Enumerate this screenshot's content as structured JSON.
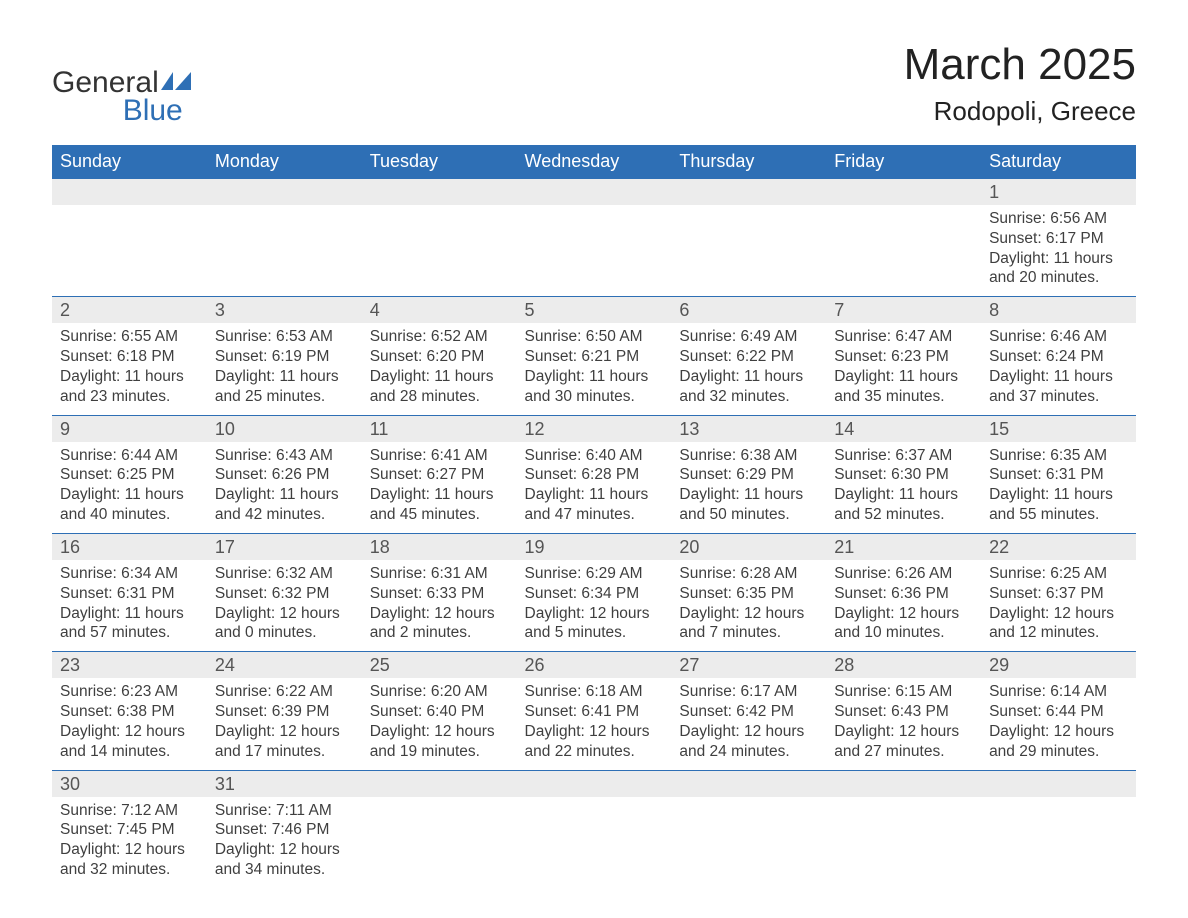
{
  "brand": {
    "word1": "General",
    "word2": "Blue",
    "color_text": "#333333",
    "color_blue": "#2e6fb5"
  },
  "title": "March 2025",
  "location": "Rodopoli, Greece",
  "colors": {
    "header_bg": "#2e6fb5",
    "header_text": "#ffffff",
    "daynum_bg": "#ececec",
    "body_text": "#3b3b3b",
    "page_bg": "#ffffff",
    "row_border": "#2e6fb5"
  },
  "day_labels": [
    "Sunday",
    "Monday",
    "Tuesday",
    "Wednesday",
    "Thursday",
    "Friday",
    "Saturday"
  ],
  "weeks": [
    [
      {
        "blank": true
      },
      {
        "blank": true
      },
      {
        "blank": true
      },
      {
        "blank": true
      },
      {
        "blank": true
      },
      {
        "blank": true
      },
      {
        "n": "1",
        "sunrise": "6:56 AM",
        "sunset": "6:17 PM",
        "dl": "11 hours and 20 minutes."
      }
    ],
    [
      {
        "n": "2",
        "sunrise": "6:55 AM",
        "sunset": "6:18 PM",
        "dl": "11 hours and 23 minutes."
      },
      {
        "n": "3",
        "sunrise": "6:53 AM",
        "sunset": "6:19 PM",
        "dl": "11 hours and 25 minutes."
      },
      {
        "n": "4",
        "sunrise": "6:52 AM",
        "sunset": "6:20 PM",
        "dl": "11 hours and 28 minutes."
      },
      {
        "n": "5",
        "sunrise": "6:50 AM",
        "sunset": "6:21 PM",
        "dl": "11 hours and 30 minutes."
      },
      {
        "n": "6",
        "sunrise": "6:49 AM",
        "sunset": "6:22 PM",
        "dl": "11 hours and 32 minutes."
      },
      {
        "n": "7",
        "sunrise": "6:47 AM",
        "sunset": "6:23 PM",
        "dl": "11 hours and 35 minutes."
      },
      {
        "n": "8",
        "sunrise": "6:46 AM",
        "sunset": "6:24 PM",
        "dl": "11 hours and 37 minutes."
      }
    ],
    [
      {
        "n": "9",
        "sunrise": "6:44 AM",
        "sunset": "6:25 PM",
        "dl": "11 hours and 40 minutes."
      },
      {
        "n": "10",
        "sunrise": "6:43 AM",
        "sunset": "6:26 PM",
        "dl": "11 hours and 42 minutes."
      },
      {
        "n": "11",
        "sunrise": "6:41 AM",
        "sunset": "6:27 PM",
        "dl": "11 hours and 45 minutes."
      },
      {
        "n": "12",
        "sunrise": "6:40 AM",
        "sunset": "6:28 PM",
        "dl": "11 hours and 47 minutes."
      },
      {
        "n": "13",
        "sunrise": "6:38 AM",
        "sunset": "6:29 PM",
        "dl": "11 hours and 50 minutes."
      },
      {
        "n": "14",
        "sunrise": "6:37 AM",
        "sunset": "6:30 PM",
        "dl": "11 hours and 52 minutes."
      },
      {
        "n": "15",
        "sunrise": "6:35 AM",
        "sunset": "6:31 PM",
        "dl": "11 hours and 55 minutes."
      }
    ],
    [
      {
        "n": "16",
        "sunrise": "6:34 AM",
        "sunset": "6:31 PM",
        "dl": "11 hours and 57 minutes."
      },
      {
        "n": "17",
        "sunrise": "6:32 AM",
        "sunset": "6:32 PM",
        "dl": "12 hours and 0 minutes."
      },
      {
        "n": "18",
        "sunrise": "6:31 AM",
        "sunset": "6:33 PM",
        "dl": "12 hours and 2 minutes."
      },
      {
        "n": "19",
        "sunrise": "6:29 AM",
        "sunset": "6:34 PM",
        "dl": "12 hours and 5 minutes."
      },
      {
        "n": "20",
        "sunrise": "6:28 AM",
        "sunset": "6:35 PM",
        "dl": "12 hours and 7 minutes."
      },
      {
        "n": "21",
        "sunrise": "6:26 AM",
        "sunset": "6:36 PM",
        "dl": "12 hours and 10 minutes."
      },
      {
        "n": "22",
        "sunrise": "6:25 AM",
        "sunset": "6:37 PM",
        "dl": "12 hours and 12 minutes."
      }
    ],
    [
      {
        "n": "23",
        "sunrise": "6:23 AM",
        "sunset": "6:38 PM",
        "dl": "12 hours and 14 minutes."
      },
      {
        "n": "24",
        "sunrise": "6:22 AM",
        "sunset": "6:39 PM",
        "dl": "12 hours and 17 minutes."
      },
      {
        "n": "25",
        "sunrise": "6:20 AM",
        "sunset": "6:40 PM",
        "dl": "12 hours and 19 minutes."
      },
      {
        "n": "26",
        "sunrise": "6:18 AM",
        "sunset": "6:41 PM",
        "dl": "12 hours and 22 minutes."
      },
      {
        "n": "27",
        "sunrise": "6:17 AM",
        "sunset": "6:42 PM",
        "dl": "12 hours and 24 minutes."
      },
      {
        "n": "28",
        "sunrise": "6:15 AM",
        "sunset": "6:43 PM",
        "dl": "12 hours and 27 minutes."
      },
      {
        "n": "29",
        "sunrise": "6:14 AM",
        "sunset": "6:44 PM",
        "dl": "12 hours and 29 minutes."
      }
    ],
    [
      {
        "n": "30",
        "sunrise": "7:12 AM",
        "sunset": "7:45 PM",
        "dl": "12 hours and 32 minutes."
      },
      {
        "n": "31",
        "sunrise": "7:11 AM",
        "sunset": "7:46 PM",
        "dl": "12 hours and 34 minutes."
      },
      {
        "blank": true
      },
      {
        "blank": true
      },
      {
        "blank": true
      },
      {
        "blank": true
      },
      {
        "blank": true
      }
    ]
  ],
  "labels": {
    "sunrise_prefix": "Sunrise: ",
    "sunset_prefix": "Sunset: ",
    "daylight_prefix": "Daylight: "
  }
}
